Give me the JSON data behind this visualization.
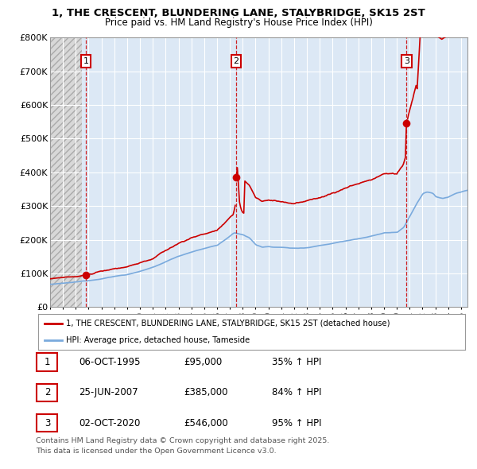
{
  "title_line1": "1, THE CRESCENT, BLUNDERING LANE, STALYBRIDGE, SK15 2ST",
  "title_line2": "Price paid vs. HM Land Registry's House Price Index (HPI)",
  "ylim": [
    0,
    800000
  ],
  "yticks": [
    0,
    100000,
    200000,
    300000,
    400000,
    500000,
    600000,
    700000,
    800000
  ],
  "ytick_labels": [
    "£0",
    "£100K",
    "£200K",
    "£300K",
    "£400K",
    "£500K",
    "£600K",
    "£700K",
    "£800K"
  ],
  "xlim_start": 1993.0,
  "xlim_end": 2025.5,
  "purchase_dates": [
    1995.78,
    2007.48,
    2020.75
  ],
  "purchase_prices": [
    95000,
    385000,
    546000
  ],
  "purchase_labels": [
    "1",
    "2",
    "3"
  ],
  "property_color": "#cc0000",
  "hpi_color": "#7aaadd",
  "legend_property": "1, THE CRESCENT, BLUNDERING LANE, STALYBRIDGE, SK15 2ST (detached house)",
  "legend_hpi": "HPI: Average price, detached house, Tameside",
  "table_rows": [
    {
      "num": "1",
      "date": "06-OCT-1995",
      "price": "£95,000",
      "hpi": "35% ↑ HPI"
    },
    {
      "num": "2",
      "date": "25-JUN-2007",
      "price": "£385,000",
      "hpi": "84% ↑ HPI"
    },
    {
      "num": "3",
      "date": "02-OCT-2020",
      "price": "£546,000",
      "hpi": "95% ↑ HPI"
    }
  ],
  "footnote_line1": "Contains HM Land Registry data © Crown copyright and database right 2025.",
  "footnote_line2": "This data is licensed under the Open Government Licence v3.0.",
  "plot_bg": "#dce8f5",
  "hatch_bg": "#e8e8e8"
}
